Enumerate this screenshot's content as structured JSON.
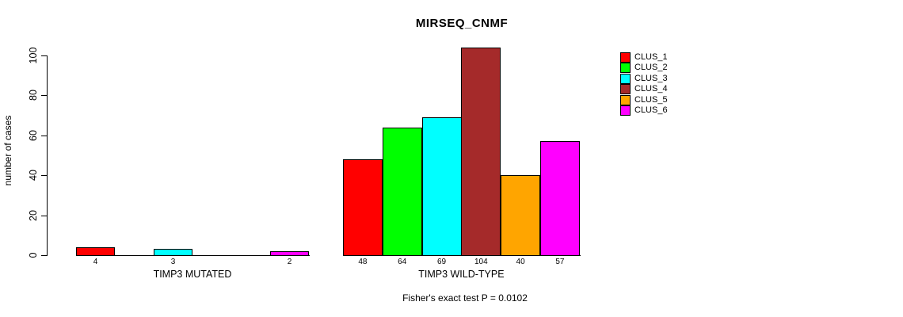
{
  "figure": {
    "background": "#ffffff",
    "axis_color": "#000000"
  },
  "chart_data": {
    "type": "bar",
    "title": "MIRSEQ_CNMF",
    "subtitle": "Fisher's exact test P = 0.0102",
    "ylabel": "number of cases",
    "xlabel": "",
    "ylim": [
      0,
      100
    ],
    "yticks": [
      0,
      20,
      40,
      60,
      80,
      100
    ],
    "grid": false,
    "legend_position": "topright",
    "bar_value_labels": {
      "show": true,
      "hide_zero": true
    },
    "categories": [
      "TIMP3 MUTATED",
      "TIMP3 WILD-TYPE"
    ],
    "series": [
      {
        "name": "CLUS_1",
        "color": "#FF0000",
        "values": [
          4,
          48
        ]
      },
      {
        "name": "CLUS_2",
        "color": "#00FF00",
        "values": [
          0,
          64
        ]
      },
      {
        "name": "CLUS_3",
        "color": "#00FFFF",
        "values": [
          3,
          69
        ]
      },
      {
        "name": "CLUS_4",
        "color": "#A52A2A",
        "values": [
          0,
          104
        ]
      },
      {
        "name": "CLUS_5",
        "color": "#FFA500",
        "values": [
          0,
          40
        ]
      },
      {
        "name": "CLUS_6",
        "color": "#FF00FF",
        "values": [
          2,
          57
        ]
      }
    ]
  }
}
